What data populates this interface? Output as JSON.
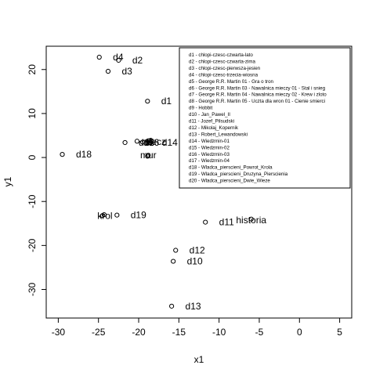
{
  "chart_data": {
    "type": "scatter",
    "xlabel": "x1",
    "ylabel": "y1",
    "xlim": [
      -31.5,
      6.5
    ],
    "ylim": [
      -36.5,
      25.3
    ],
    "xticks": [
      -30,
      -25,
      -20,
      -15,
      -10,
      -5,
      0,
      5
    ],
    "yticks": [
      -30,
      -20,
      -10,
      0,
      10,
      20
    ],
    "xtick_labels": [
      "-30",
      "-25",
      "-20",
      "-15",
      "-10",
      "-5",
      "0",
      "5"
    ],
    "ytick_labels": [
      "-30",
      "-20",
      "-10",
      "0",
      "10",
      "20"
    ],
    "points": [
      {
        "label": "d1",
        "x": -18.9,
        "y": 12.8
      },
      {
        "label": "d2",
        "x": -22.5,
        "y": 22.1
      },
      {
        "label": "d3",
        "x": -23.8,
        "y": 19.6
      },
      {
        "label": "d4",
        "x": -24.9,
        "y": 22.8
      },
      {
        "label": "d5",
        "x": -18.9,
        "y": 0.3
      },
      {
        "label": "d6",
        "x": -20.2,
        "y": 3.7
      },
      {
        "label": "d7",
        "x": -18.4,
        "y": 3.6
      },
      {
        "label": "d8",
        "x": -18.8,
        "y": 3.8
      },
      {
        "label": "d9",
        "x": -19.5,
        "y": 3.5
      },
      {
        "label": "d10",
        "x": -15.7,
        "y": -23.6
      },
      {
        "label": "d11",
        "x": -11.7,
        "y": -14.7
      },
      {
        "label": "d12",
        "x": -15.4,
        "y": -21.1
      },
      {
        "label": "d13",
        "x": -15.9,
        "y": -33.8
      },
      {
        "label": "d14",
        "x": -18.6,
        "y": 3.4
      },
      {
        "label": "d15",
        "x": -21.7,
        "y": 3.4
      },
      {
        "label": "d16",
        "x": -18.9,
        "y": 3.3
      },
      {
        "label": "d17",
        "x": -18.5,
        "y": 3.9
      },
      {
        "label": "d18",
        "x": -29.5,
        "y": 0.7
      },
      {
        "label": "d19",
        "x": -22.7,
        "y": -13.1
      },
      {
        "label": "d20",
        "x": -24.3,
        "y": -13.0
      }
    ],
    "point_labels": [
      {
        "text": "d1",
        "x": -17.2,
        "y": 12.8
      },
      {
        "text": "d2",
        "x": -20.8,
        "y": 22.1
      },
      {
        "text": "d3",
        "x": -22.1,
        "y": 19.6
      },
      {
        "text": "d4",
        "x": -23.2,
        "y": 22.8
      },
      {
        "text": "d18",
        "x": -27.8,
        "y": 0.7
      },
      {
        "text": "d19",
        "x": -21.0,
        "y": -13.1
      },
      {
        "text": "d15",
        "x": -20.0,
        "y": 3.4
      },
      {
        "text": "d16",
        "x": -19.4,
        "y": 3.4
      },
      {
        "text": "d14",
        "x": -17.1,
        "y": 3.4
      },
      {
        "text": "d11",
        "x": -10.0,
        "y": -14.7
      },
      {
        "text": "d12",
        "x": -13.7,
        "y": -21.1
      },
      {
        "text": "d10",
        "x": -14.0,
        "y": -23.6
      },
      {
        "text": "d13",
        "x": -14.2,
        "y": -33.8
      }
    ],
    "word_labels": [
      {
        "text": "mur",
        "x": -18.8,
        "y": 0.5
      },
      {
        "text": "krol",
        "x": -24.2,
        "y": -13.3
      },
      {
        "text": "historia",
        "x": -6.0,
        "y": -14.2
      },
      {
        "text": "miecz",
        "x": -18.1,
        "y": 3.6
      }
    ],
    "word_markers": [
      {
        "x": -18.8,
        "y": 0.5
      },
      {
        "x": -24.5,
        "y": -13.2
      },
      {
        "x": -6.0,
        "y": -14.0
      }
    ],
    "legend": {
      "placement": "top-right",
      "entries": [
        "d1 - chlopi-czesc-czwarta-lato",
        "d2 - chlopi-czesc-czwarta-zima",
        "d3 - chlopi-czesc-pierwsza-jesien",
        "d4 - chlopi-czesc-trzecia-wiosna",
        "d5 - George R.R. Martin 01 - Gra o tron",
        "d6 - George R.R. Martin 03 - Nawalnica mieczy 01 - Stal i snieg",
        "d7 - George R.R. Martin 04 - Nawalnica mieczy 02 - Krew i zloto",
        "d8 - George R.R. Martin 05 - Uczta dla wron 01 - Cienie smierci",
        "d9 - Hobbit",
        "d10 - Jan_Pawel_II",
        "d11 - Jozef_Pilsudski",
        "d12 - Mikolaj_Kopernik",
        "d13 - Robert_Lewandowski",
        "d14 - Wiedzmin-01",
        "d15 - Wiedzmin-02",
        "d16 - Wiedzmin-03",
        "d17 - Wiedzmin-04",
        "d18 - Wladca_pierscieni_Powrot_Krola",
        "d19 - Wladca_pierscieni_Druzyna_Pierscienia",
        "d20 - Wladca_pierscieni_Dwie_Wieze"
      ]
    },
    "grid": false
  }
}
